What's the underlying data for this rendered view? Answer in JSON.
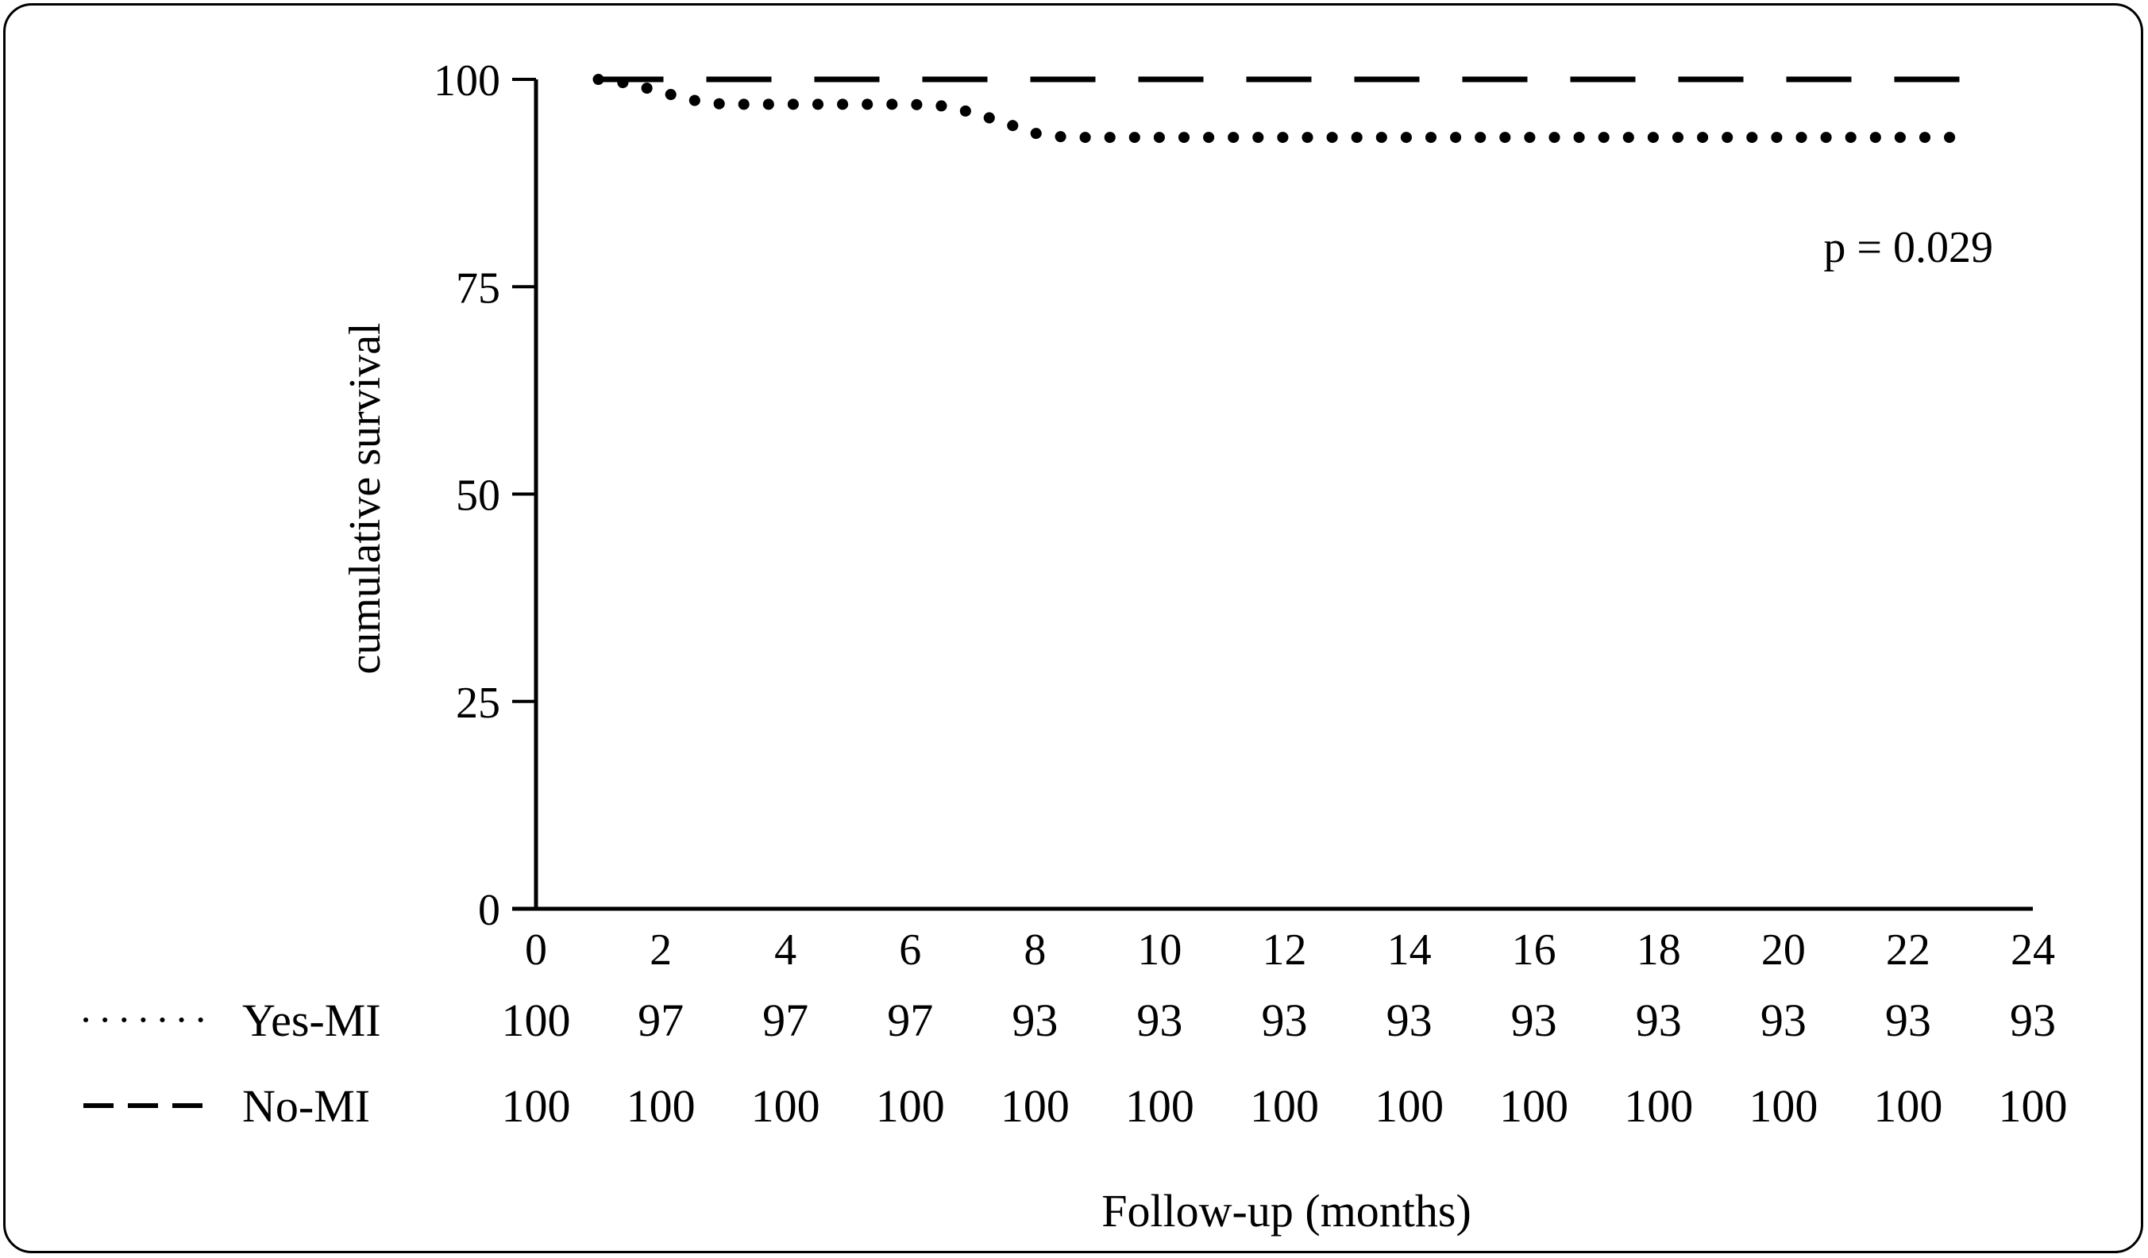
{
  "chart_data": {
    "type": "line",
    "title": "",
    "xlabel": "Follow-up (months)",
    "ylabel": "cumulative survival",
    "xlim": [
      0,
      24
    ],
    "ylim": [
      0,
      100
    ],
    "x_ticks": [
      0,
      2,
      4,
      6,
      8,
      10,
      12,
      14,
      16,
      18,
      20,
      22,
      24
    ],
    "y_ticks": [
      0,
      25,
      50,
      75,
      100
    ],
    "grid": false,
    "annotation": "p = 0.029",
    "series": [
      {
        "name": "Yes-MI",
        "line_style": "dotted",
        "color": "#000000",
        "points": [
          [
            1,
            100
          ],
          [
            1.5,
            99.5
          ],
          [
            2,
            98.5
          ],
          [
            2.5,
            97.5
          ],
          [
            3,
            97
          ],
          [
            6,
            97
          ],
          [
            6.5,
            96.8
          ],
          [
            7,
            96
          ],
          [
            7.5,
            94.8
          ],
          [
            8,
            93.5
          ],
          [
            8.5,
            93
          ],
          [
            23,
            93
          ]
        ]
      },
      {
        "name": "No-MI",
        "line_style": "dashed",
        "color": "#000000",
        "points": [
          [
            1,
            100
          ],
          [
            23,
            100
          ]
        ]
      }
    ],
    "risk_table": {
      "x": [
        0,
        2,
        4,
        6,
        8,
        10,
        12,
        14,
        16,
        18,
        20,
        22,
        24
      ],
      "rows": [
        {
          "name": "Yes-MI",
          "line_style": "dotted",
          "values": [
            "100",
            "97",
            "97",
            "97",
            "93",
            "93",
            "93",
            "93",
            "93",
            "93",
            "93",
            "93",
            "93"
          ]
        },
        {
          "name": "No-MI",
          "line_style": "dashed",
          "values": [
            "100",
            "100",
            "100",
            "100",
            "100",
            "100",
            "100",
            "100",
            "100",
            "100",
            "100",
            "100",
            "100"
          ]
        }
      ]
    }
  }
}
